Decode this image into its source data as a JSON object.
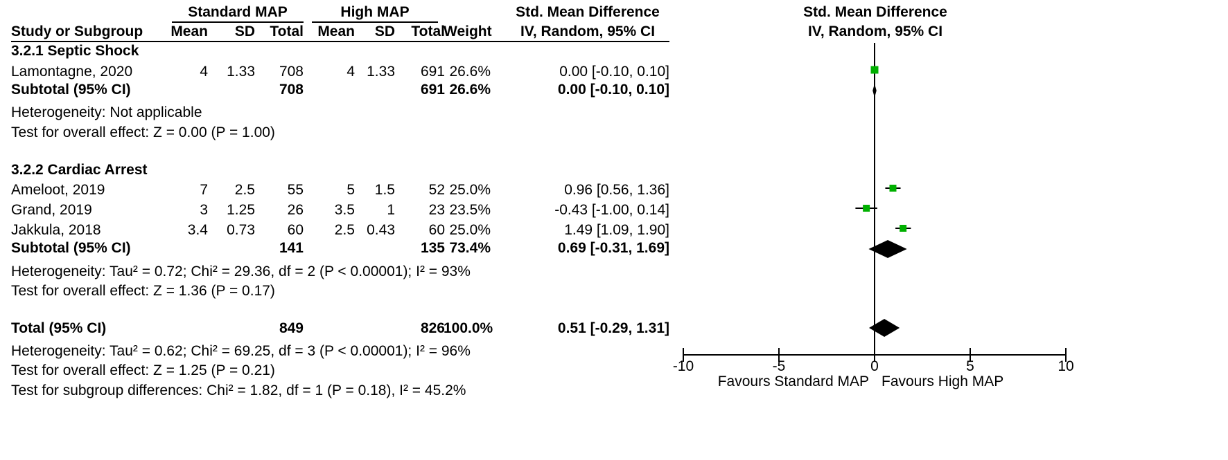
{
  "header": {
    "group1": "Standard MAP",
    "group2": "High MAP",
    "effect_title": "Std. Mean Difference",
    "effect_method": "IV, Random, 95% CI",
    "plot_title": "Std. Mean Difference",
    "plot_method": "IV, Random, 95% CI",
    "col_study": "Study or Subgroup",
    "col_mean1": "Mean",
    "col_sd1": "SD",
    "col_total1": "Total",
    "col_mean2": "Mean",
    "col_sd2": "SD",
    "col_total2": "Total",
    "col_weight": "Weight"
  },
  "sub1": {
    "title": "3.2.1 Septic Shock",
    "rows": [
      {
        "study": "Lamontagne, 2020",
        "mean1": "4",
        "sd1": "1.33",
        "total1": "708",
        "mean2": "4",
        "sd2": "1.33",
        "total2": "691",
        "weight": "26.6%",
        "ci": "0.00 [-0.10, 0.10]"
      }
    ],
    "subtotal": {
      "label": "Subtotal (95% CI)",
      "total1": "708",
      "total2": "691",
      "weight": "26.6%",
      "ci": "0.00 [-0.10, 0.10]"
    },
    "heterogeneity": "Heterogeneity: Not applicable",
    "overall": "Test for overall effect: Z = 0.00 (P = 1.00)"
  },
  "sub2": {
    "title": "3.2.2 Cardiac Arrest",
    "rows": [
      {
        "study": "Ameloot, 2019",
        "mean1": "7",
        "sd1": "2.5",
        "total1": "55",
        "mean2": "5",
        "sd2": "1.5",
        "total2": "52",
        "weight": "25.0%",
        "ci": "0.96 [0.56, 1.36]"
      },
      {
        "study": "Grand, 2019",
        "mean1": "3",
        "sd1": "1.25",
        "total1": "26",
        "mean2": "3.5",
        "sd2": "1",
        "total2": "23",
        "weight": "23.5%",
        "ci": "-0.43 [-1.00, 0.14]"
      },
      {
        "study": "Jakkula, 2018",
        "mean1": "3.4",
        "sd1": "0.73",
        "total1": "60",
        "mean2": "2.5",
        "sd2": "0.43",
        "total2": "60",
        "weight": "25.0%",
        "ci": "1.49 [1.09, 1.90]"
      }
    ],
    "subtotal": {
      "label": "Subtotal (95% CI)",
      "total1": "141",
      "total2": "135",
      "weight": "73.4%",
      "ci": "0.69 [-0.31, 1.69]"
    },
    "heterogeneity": "Heterogeneity: Tau² = 0.72; Chi² = 29.36, df = 2 (P < 0.00001); I² = 93%",
    "overall": "Test for overall effect: Z = 1.36 (P = 0.17)"
  },
  "total": {
    "label": "Total (95% CI)",
    "total1": "849",
    "total2": "826",
    "weight": "100.0%",
    "ci": "0.51 [-0.29, 1.31]",
    "heterogeneity": "Heterogeneity: Tau² = 0.62; Chi² = 69.25, df = 3 (P < 0.00001); I² = 96%",
    "overall": "Test for overall effect: Z = 1.25 (P = 0.21)",
    "subgroup": "Test for subgroup differences: Chi² = 1.82, df = 1 (P = 0.18), I² = 45.2%"
  },
  "colors": {
    "square": "#00b000",
    "diamond": "#000000",
    "line": "#000000"
  },
  "chart_data": {
    "type": "forest",
    "xlim": [
      -10,
      10
    ],
    "ticks": [
      -10,
      -5,
      0,
      5,
      10
    ],
    "tick_labels": [
      "-10",
      "-5",
      "0",
      "5",
      "10"
    ],
    "favours_left": "Favours Standard MAP",
    "favours_right": "Favours High MAP",
    "studies": [
      {
        "name": "Lamontagne, 2020",
        "est": 0.0,
        "lo": -0.1,
        "hi": 0.1,
        "weight": 26.6
      },
      {
        "name": "Ameloot, 2019",
        "est": 0.96,
        "lo": 0.56,
        "hi": 1.36,
        "weight": 25.0
      },
      {
        "name": "Grand, 2019",
        "est": -0.43,
        "lo": -1.0,
        "hi": 0.14,
        "weight": 23.5
      },
      {
        "name": "Jakkula, 2018",
        "est": 1.49,
        "lo": 1.09,
        "hi": 1.9,
        "weight": 25.0
      }
    ],
    "summaries": [
      {
        "name": "Subtotal 3.2.1",
        "est": 0.0,
        "lo": -0.1,
        "hi": 0.1
      },
      {
        "name": "Subtotal 3.2.2",
        "est": 0.69,
        "lo": -0.31,
        "hi": 1.69
      },
      {
        "name": "Total",
        "est": 0.51,
        "lo": -0.29,
        "hi": 1.31
      }
    ]
  }
}
